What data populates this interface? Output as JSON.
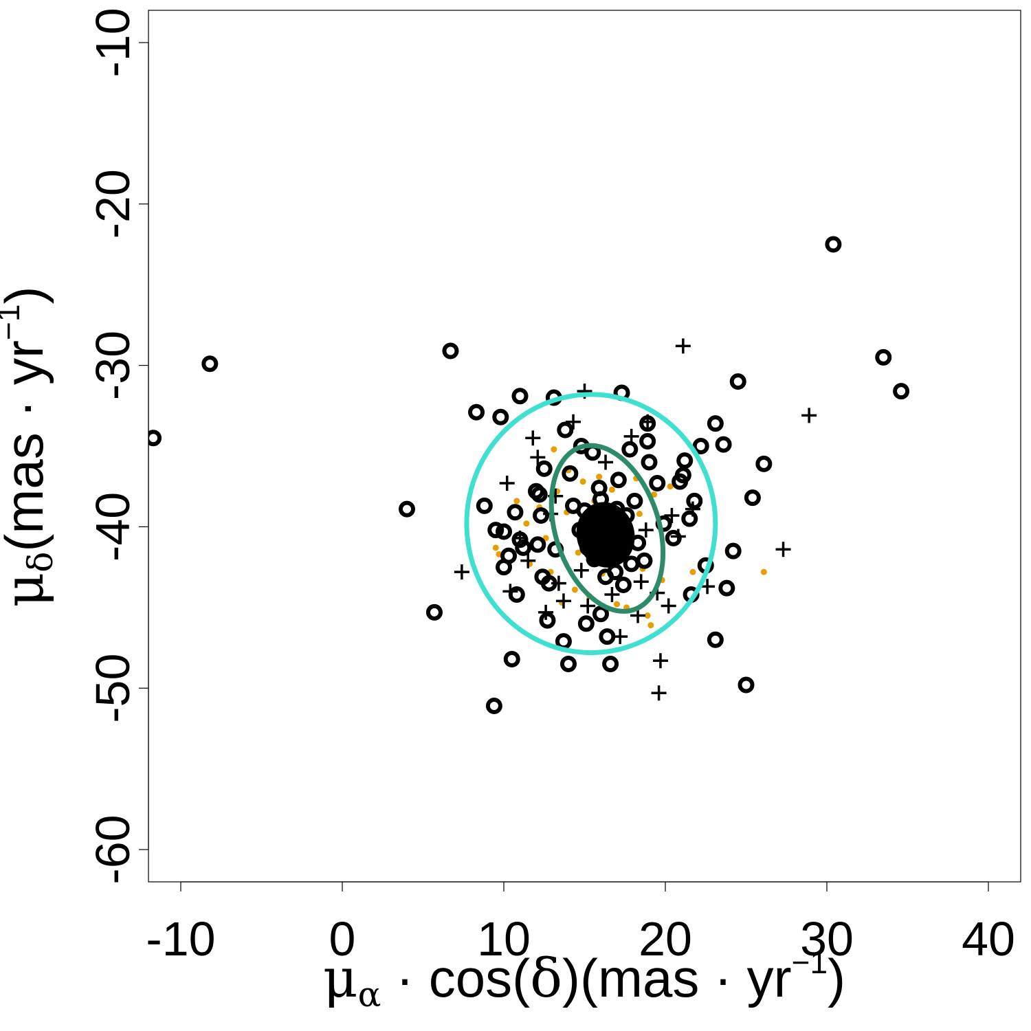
{
  "chart_data": {
    "type": "scatter",
    "xlabel": "μα·cos(δ)(mas·yr−1)",
    "ylabel": "μδ(mas·yr−1)",
    "xlim": [
      -12,
      42
    ],
    "ylim": [
      -62,
      -8
    ],
    "xticks": [
      "-10",
      "0",
      "10",
      "20",
      "30",
      "40"
    ],
    "yticks": [
      "-10",
      "-20",
      "-30",
      "-40",
      "-50",
      "-60"
    ],
    "grid": false,
    "colors": {
      "members": "#e69f00",
      "circles": "#000000",
      "crosses": "#000000",
      "ellipse_outer": "#40e0d0",
      "ellipse_inner": "#2e8b6a"
    },
    "series": [
      {
        "marker": "circle-open",
        "points": [
          [
            -11.7,
            -34.5
          ],
          [
            -8.2,
            -29.9
          ],
          [
            4.0,
            -38.9
          ],
          [
            5.7,
            -45.3
          ],
          [
            6.7,
            -29.1
          ],
          [
            8.3,
            -32.9
          ],
          [
            8.8,
            -38.7
          ],
          [
            9.4,
            -51.1
          ],
          [
            9.5,
            -40.2
          ],
          [
            9.8,
            -33.2
          ],
          [
            10.0,
            -40.3
          ],
          [
            10.0,
            -42.5
          ],
          [
            10.3,
            -41.8
          ],
          [
            10.5,
            -48.2
          ],
          [
            10.7,
            -39.1
          ],
          [
            10.8,
            -44.2
          ],
          [
            11.0,
            -31.9
          ],
          [
            11.0,
            -40.8
          ],
          [
            11.2,
            -41.3
          ],
          [
            12.0,
            -37.8
          ],
          [
            12.1,
            -41.1
          ],
          [
            12.2,
            -38.0
          ],
          [
            12.3,
            -39.3
          ],
          [
            12.4,
            -43.1
          ],
          [
            12.5,
            -36.4
          ],
          [
            12.7,
            -45.8
          ],
          [
            12.8,
            -43.5
          ],
          [
            13.1,
            -32.0
          ],
          [
            13.2,
            -41.4
          ],
          [
            13.7,
            -47.1
          ],
          [
            13.8,
            -34.0
          ],
          [
            14.0,
            -48.5
          ],
          [
            14.1,
            -36.7
          ],
          [
            14.3,
            -38.7
          ],
          [
            14.8,
            -35.0
          ],
          [
            15.1,
            -46.0
          ],
          [
            15.5,
            -35.4
          ],
          [
            16.0,
            -45.4
          ],
          [
            16.4,
            -46.8
          ],
          [
            16.6,
            -48.5
          ],
          [
            17.1,
            -37.1
          ],
          [
            17.3,
            -31.7
          ],
          [
            17.8,
            -35.2
          ],
          [
            18.1,
            -38.4
          ],
          [
            18.7,
            -42.1
          ],
          [
            18.9,
            -33.6
          ],
          [
            18.9,
            -34.7
          ],
          [
            19.0,
            -36.0
          ],
          [
            19.5,
            -37.3
          ],
          [
            19.9,
            -39.8
          ],
          [
            20.5,
            -40.7
          ],
          [
            20.9,
            -37.2
          ],
          [
            21.1,
            -36.8
          ],
          [
            21.2,
            -35.9
          ],
          [
            21.5,
            -39.5
          ],
          [
            21.6,
            -44.2
          ],
          [
            21.8,
            -38.4
          ],
          [
            22.2,
            -35.0
          ],
          [
            22.5,
            -42.4
          ],
          [
            23.1,
            -33.6
          ],
          [
            23.1,
            -47.0
          ],
          [
            23.6,
            -34.9
          ],
          [
            23.8,
            -43.8
          ],
          [
            24.2,
            -41.5
          ],
          [
            24.5,
            -31.0
          ],
          [
            25.0,
            -49.8
          ],
          [
            25.4,
            -38.2
          ],
          [
            26.1,
            -36.1
          ],
          [
            30.4,
            -22.5
          ],
          [
            33.5,
            -29.5
          ],
          [
            34.6,
            -31.6
          ],
          [
            15.0,
            -39.0
          ],
          [
            15.4,
            -40.0
          ],
          [
            15.8,
            -40.6
          ],
          [
            16.2,
            -39.4
          ],
          [
            16.5,
            -41.2
          ],
          [
            16.8,
            -40.1
          ],
          [
            17.2,
            -41.7
          ],
          [
            17.5,
            -40.4
          ],
          [
            15.6,
            -42.0
          ],
          [
            16.0,
            -38.3
          ],
          [
            17.0,
            -38.9
          ],
          [
            17.9,
            -42.3
          ],
          [
            16.3,
            -43.1
          ],
          [
            15.2,
            -41.3
          ],
          [
            17.6,
            -39.3
          ],
          [
            18.3,
            -41.0
          ],
          [
            14.7,
            -40.2
          ],
          [
            16.9,
            -42.8
          ],
          [
            15.9,
            -37.6
          ],
          [
            17.4,
            -43.6
          ]
        ]
      },
      {
        "marker": "plus",
        "points": [
          [
            7.4,
            -42.8
          ],
          [
            10.2,
            -37.3
          ],
          [
            10.4,
            -44.0
          ],
          [
            11.0,
            -40.7
          ],
          [
            11.5,
            -42.1
          ],
          [
            11.8,
            -34.5
          ],
          [
            12.1,
            -35.7
          ],
          [
            12.6,
            -45.3
          ],
          [
            12.9,
            -39.2
          ],
          [
            13.4,
            -43.5
          ],
          [
            13.7,
            -44.6
          ],
          [
            14.3,
            -33.5
          ],
          [
            15.0,
            -31.6
          ],
          [
            15.2,
            -44.9
          ],
          [
            16.3,
            -36.0
          ],
          [
            17.2,
            -46.8
          ],
          [
            17.9,
            -34.4
          ],
          [
            18.3,
            -45.5
          ],
          [
            18.8,
            -40.2
          ],
          [
            18.9,
            -33.5
          ],
          [
            19.5,
            -44.1
          ],
          [
            19.6,
            -50.3
          ],
          [
            19.7,
            -48.3
          ],
          [
            20.2,
            -44.9
          ],
          [
            20.4,
            -39.3
          ],
          [
            20.8,
            -40.6
          ],
          [
            21.1,
            -28.8
          ],
          [
            21.7,
            -38.9
          ],
          [
            22.6,
            -43.7
          ],
          [
            27.3,
            -41.4
          ],
          [
            28.9,
            -33.1
          ],
          [
            14.8,
            -42.7
          ],
          [
            16.7,
            -44.2
          ],
          [
            18.5,
            -43.4
          ],
          [
            13.2,
            -38.1
          ]
        ]
      },
      {
        "marker": "dot",
        "points": [
          [
            9.5,
            -41.3
          ],
          [
            9.7,
            -41.7
          ],
          [
            10.8,
            -38.4
          ],
          [
            11.4,
            -39.8
          ],
          [
            11.6,
            -42.3
          ],
          [
            12.2,
            -38.8
          ],
          [
            12.6,
            -40.7
          ],
          [
            12.9,
            -42.8
          ],
          [
            13.1,
            -35.2
          ],
          [
            13.3,
            -37.8
          ],
          [
            13.6,
            -44.7
          ],
          [
            13.9,
            -39.1
          ],
          [
            14.0,
            -36.5
          ],
          [
            14.4,
            -43.9
          ],
          [
            14.6,
            -41.6
          ],
          [
            14.9,
            -37.2
          ],
          [
            15.3,
            -44.3
          ],
          [
            15.6,
            -38.4
          ],
          [
            15.9,
            -36.9
          ],
          [
            16.1,
            -42.9
          ],
          [
            16.4,
            -45.1
          ],
          [
            16.7,
            -37.7
          ],
          [
            17.0,
            -44.8
          ],
          [
            17.3,
            -39.5
          ],
          [
            17.6,
            -45.0
          ],
          [
            17.8,
            -41.1
          ],
          [
            18.2,
            -37.0
          ],
          [
            18.4,
            -39.2
          ],
          [
            18.6,
            -42.6
          ],
          [
            18.9,
            -45.5
          ],
          [
            19.1,
            -46.1
          ],
          [
            19.3,
            -38.0
          ],
          [
            19.8,
            -43.3
          ],
          [
            20.3,
            -37.5
          ],
          [
            21.7,
            -42.8
          ],
          [
            26.1,
            -42.8
          ],
          [
            16.0,
            -40.2
          ],
          [
            15.5,
            -39.7
          ],
          [
            17.1,
            -40.9
          ],
          [
            16.6,
            -41.5
          ]
        ]
      }
    ],
    "ellipses": [
      {
        "name": "outer",
        "center": [
          15.4,
          -39.8
        ],
        "semi_x": 7.7,
        "semi_y": 8.0,
        "rotation_deg": 0
      },
      {
        "name": "inner",
        "center": [
          16.4,
          -40.1
        ],
        "semi_x": 3.2,
        "semi_y": 5.3,
        "rotation_deg": -18
      }
    ]
  }
}
